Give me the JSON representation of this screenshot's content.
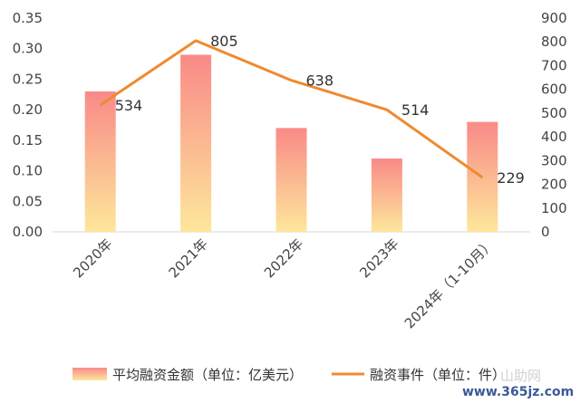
{
  "chart_data": {
    "type": "bar",
    "title": "",
    "categories": [
      "2020年",
      "2021年",
      "2022年",
      "2023年",
      "2024年（1-10月）"
    ],
    "series": [
      {
        "name": "平均融资金额（单位：亿美元）",
        "type": "bar",
        "axis": "left",
        "values": [
          0.23,
          0.29,
          0.17,
          0.12,
          0.18
        ]
      },
      {
        "name": "融资事件（单位：件）",
        "type": "line",
        "axis": "right",
        "values": [
          534,
          805,
          638,
          514,
          229
        ],
        "data_labels": [
          "534",
          "805",
          "638",
          "514",
          "229"
        ]
      }
    ],
    "y_left": {
      "min": 0,
      "max": 0.35,
      "ticks": [
        "0.00",
        "0.05",
        "0.10",
        "0.15",
        "0.20",
        "0.25",
        "0.30",
        "0.35"
      ]
    },
    "y_right": {
      "min": 0,
      "max": 900,
      "ticks": [
        "0",
        "100",
        "200",
        "300",
        "400",
        "500",
        "600",
        "700",
        "800",
        "900"
      ]
    },
    "legend": {
      "position": "bottom",
      "items": [
        "平均融资金额（单位：亿美元）",
        "融资事件（单位：件）"
      ]
    },
    "grid": false,
    "colors": {
      "bar_top": "#f98a88",
      "bar_bottom": "#fde79b",
      "line": "#ef8a2f",
      "axis": "#d9d9d9",
      "text": "#444444"
    }
  },
  "watermark": {
    "text": "www.365jz.com",
    "mark": "山助网"
  }
}
